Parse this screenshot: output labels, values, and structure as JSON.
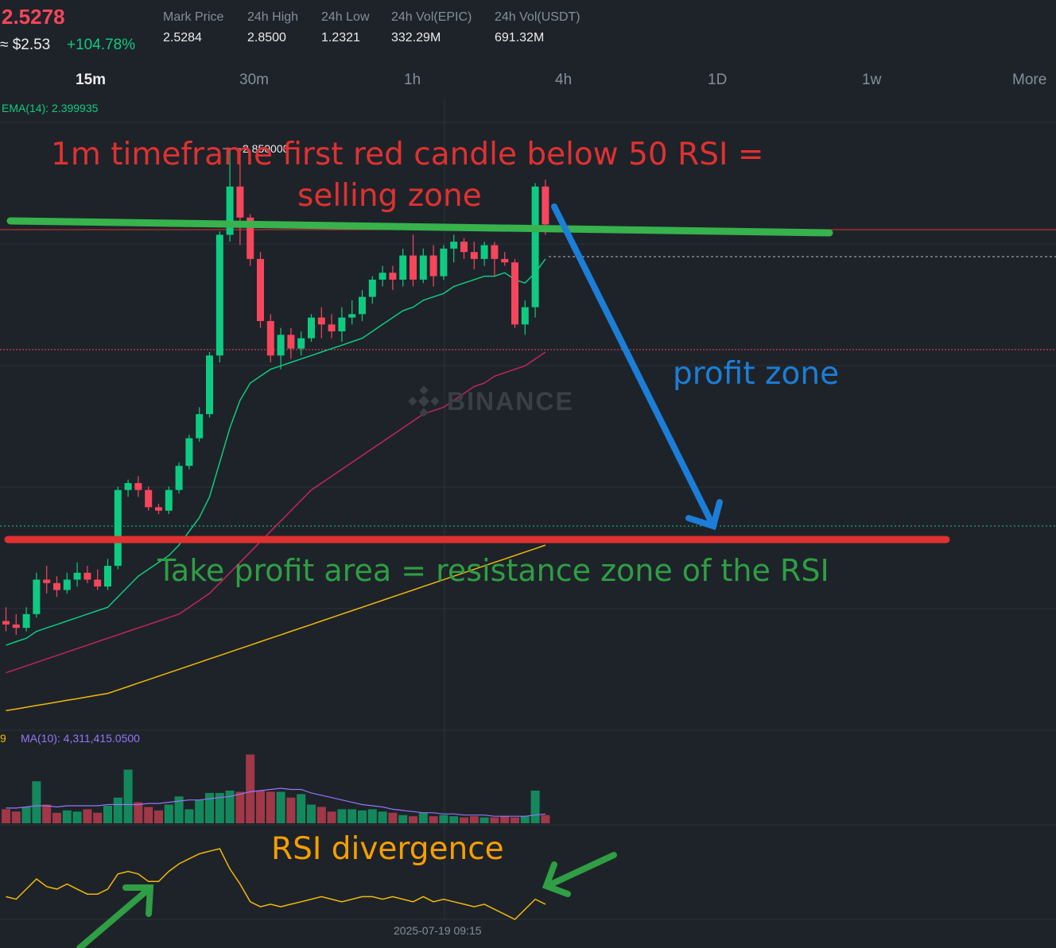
{
  "header": {
    "last_price": "2.5278",
    "usd_price": "≈ $2.53",
    "change_pct": "+104.78%",
    "stats": [
      {
        "label": "Mark Price",
        "value": "2.5284"
      },
      {
        "label": "24h High",
        "value": "2.8500"
      },
      {
        "label": "24h Low",
        "value": "1.2321"
      },
      {
        "label": "24h Vol(EPIC)",
        "value": "332.29M"
      },
      {
        "label": "24h Vol(USDT)",
        "value": "691.32M"
      }
    ]
  },
  "timeframes": [
    {
      "label": "15m",
      "active": true
    },
    {
      "label": "30m",
      "active": false
    },
    {
      "label": "1h",
      "active": false
    },
    {
      "label": "4h",
      "active": false
    },
    {
      "label": "1D",
      "active": false
    },
    {
      "label": "1w",
      "active": false
    },
    {
      "label": "More",
      "active": false
    }
  ],
  "chart": {
    "ema_label": "EMA(14): 2.399935",
    "high_marker": "2.850000",
    "watermark": "BINANCE",
    "volume_prefix": "9",
    "volume_ma_label": "MA(10): 4,311,415.0500",
    "time_label": "2025-07-19 09:15"
  },
  "annotations": {
    "selling_zone_line1": "1m timeframe first red candle below 50 RSI  =",
    "selling_zone_line2": "selling zone",
    "profit_zone": "profit zone",
    "take_profit": "Take profit area = resistance zone of the RSI",
    "rsi_divergence": "RSI divergence"
  },
  "colors": {
    "background": "#1e2329",
    "up": "#0ecb81",
    "down": "#f6465d",
    "ema": "#0ecb81",
    "ma_mid": "#c2255c",
    "ma_slow": "#f0b90b",
    "rsi": "#f0b90b",
    "annotation_red": "#e03131",
    "annotation_green": "#2f9e44",
    "annotation_blue": "#1c7ed6",
    "annotation_yellow": "#f59f00"
  },
  "chart_data": {
    "type": "candlestick",
    "interval": "15m",
    "candles": [
      {
        "o": 1.48,
        "h": 1.52,
        "l": 1.45,
        "c": 1.47
      },
      {
        "o": 1.47,
        "h": 1.5,
        "l": 1.44,
        "c": 1.46
      },
      {
        "o": 1.46,
        "h": 1.52,
        "l": 1.45,
        "c": 1.5
      },
      {
        "o": 1.5,
        "h": 1.62,
        "l": 1.49,
        "c": 1.6
      },
      {
        "o": 1.6,
        "h": 1.64,
        "l": 1.56,
        "c": 1.59
      },
      {
        "o": 1.59,
        "h": 1.61,
        "l": 1.55,
        "c": 1.57
      },
      {
        "o": 1.57,
        "h": 1.62,
        "l": 1.56,
        "c": 1.6
      },
      {
        "o": 1.6,
        "h": 1.65,
        "l": 1.58,
        "c": 1.62
      },
      {
        "o": 1.62,
        "h": 1.64,
        "l": 1.59,
        "c": 1.6
      },
      {
        "o": 1.6,
        "h": 1.63,
        "l": 1.57,
        "c": 1.58
      },
      {
        "o": 1.58,
        "h": 1.66,
        "l": 1.57,
        "c": 1.64
      },
      {
        "o": 1.64,
        "h": 1.87,
        "l": 1.63,
        "c": 1.86
      },
      {
        "o": 1.86,
        "h": 1.89,
        "l": 1.84,
        "c": 1.88
      },
      {
        "o": 1.88,
        "h": 1.9,
        "l": 1.84,
        "c": 1.86
      },
      {
        "o": 1.86,
        "h": 1.87,
        "l": 1.8,
        "c": 1.81
      },
      {
        "o": 1.81,
        "h": 1.82,
        "l": 1.79,
        "c": 1.8
      },
      {
        "o": 1.8,
        "h": 1.87,
        "l": 1.79,
        "c": 1.86
      },
      {
        "o": 1.86,
        "h": 1.94,
        "l": 1.85,
        "c": 1.93
      },
      {
        "o": 1.93,
        "h": 2.02,
        "l": 1.92,
        "c": 2.01
      },
      {
        "o": 2.01,
        "h": 2.1,
        "l": 2.0,
        "c": 2.08
      },
      {
        "o": 2.08,
        "h": 2.26,
        "l": 2.07,
        "c": 2.25
      },
      {
        "o": 2.25,
        "h": 2.61,
        "l": 2.23,
        "c": 2.6
      },
      {
        "o": 2.6,
        "h": 2.85,
        "l": 2.58,
        "c": 2.74
      },
      {
        "o": 2.74,
        "h": 2.85,
        "l": 2.57,
        "c": 2.65
      },
      {
        "o": 2.65,
        "h": 2.66,
        "l": 2.51,
        "c": 2.53
      },
      {
        "o": 2.53,
        "h": 2.55,
        "l": 2.33,
        "c": 2.35
      },
      {
        "o": 2.35,
        "h": 2.37,
        "l": 2.23,
        "c": 2.25
      },
      {
        "o": 2.25,
        "h": 2.33,
        "l": 2.21,
        "c": 2.31
      },
      {
        "o": 2.31,
        "h": 2.33,
        "l": 2.24,
        "c": 2.27
      },
      {
        "o": 2.27,
        "h": 2.32,
        "l": 2.25,
        "c": 2.3
      },
      {
        "o": 2.3,
        "h": 2.37,
        "l": 2.29,
        "c": 2.36
      },
      {
        "o": 2.36,
        "h": 2.39,
        "l": 2.3,
        "c": 2.34
      },
      {
        "o": 2.34,
        "h": 2.37,
        "l": 2.3,
        "c": 2.32
      },
      {
        "o": 2.32,
        "h": 2.39,
        "l": 2.29,
        "c": 2.36
      },
      {
        "o": 2.36,
        "h": 2.41,
        "l": 2.34,
        "c": 2.37
      },
      {
        "o": 2.37,
        "h": 2.44,
        "l": 2.35,
        "c": 2.42
      },
      {
        "o": 2.42,
        "h": 2.48,
        "l": 2.4,
        "c": 2.47
      },
      {
        "o": 2.47,
        "h": 2.51,
        "l": 2.45,
        "c": 2.49
      },
      {
        "o": 2.49,
        "h": 2.51,
        "l": 2.44,
        "c": 2.47
      },
      {
        "o": 2.47,
        "h": 2.56,
        "l": 2.45,
        "c": 2.54
      },
      {
        "o": 2.54,
        "h": 2.6,
        "l": 2.45,
        "c": 2.47
      },
      {
        "o": 2.47,
        "h": 2.56,
        "l": 2.46,
        "c": 2.54
      },
      {
        "o": 2.54,
        "h": 2.57,
        "l": 2.45,
        "c": 2.48
      },
      {
        "o": 2.48,
        "h": 2.57,
        "l": 2.47,
        "c": 2.56
      },
      {
        "o": 2.56,
        "h": 2.6,
        "l": 2.52,
        "c": 2.58
      },
      {
        "o": 2.58,
        "h": 2.59,
        "l": 2.53,
        "c": 2.55
      },
      {
        "o": 2.55,
        "h": 2.58,
        "l": 2.5,
        "c": 2.53
      },
      {
        "o": 2.53,
        "h": 2.58,
        "l": 2.51,
        "c": 2.57
      },
      {
        "o": 2.57,
        "h": 2.58,
        "l": 2.48,
        "c": 2.53
      },
      {
        "o": 2.53,
        "h": 2.55,
        "l": 2.51,
        "c": 2.52
      },
      {
        "o": 2.52,
        "h": 2.53,
        "l": 2.33,
        "c": 2.34
      },
      {
        "o": 2.34,
        "h": 2.41,
        "l": 2.31,
        "c": 2.39
      },
      {
        "o": 2.39,
        "h": 2.75,
        "l": 2.36,
        "c": 2.74
      },
      {
        "o": 2.74,
        "h": 2.76,
        "l": 2.6,
        "c": 2.63
      }
    ],
    "volume": [
      1.2,
      1.0,
      1.4,
      3.6,
      1.6,
      0.9,
      1.1,
      1.0,
      1.2,
      0.9,
      1.5,
      2.2,
      4.6,
      1.8,
      1.4,
      1.1,
      1.6,
      2.3,
      1.2,
      2.0,
      2.6,
      2.6,
      2.8,
      2.7,
      5.9,
      2.8,
      2.7,
      2.7,
      2.2,
      2.5,
      1.6,
      1.4,
      1.0,
      1.2,
      1.2,
      1.1,
      1.2,
      1.0,
      0.9,
      0.7,
      0.6,
      0.9,
      0.6,
      0.7,
      0.6,
      0.5,
      0.6,
      0.5,
      0.5,
      0.6,
      0.5,
      0.6,
      2.8,
      0.7
    ],
    "volume_ma": [
      1.3,
      1.3,
      1.4,
      1.5,
      1.5,
      1.4,
      1.5,
      1.5,
      1.5,
      1.5,
      1.6,
      1.6,
      1.6,
      1.6,
      1.7,
      1.7,
      1.8,
      1.9,
      2.0,
      2.0,
      2.1,
      2.2,
      2.3,
      2.5,
      2.7,
      2.8,
      2.9,
      3.0,
      2.9,
      2.9,
      2.6,
      2.4,
      2.2,
      2.0,
      1.8,
      1.6,
      1.5,
      1.4,
      1.2,
      1.1,
      1.0,
      0.9,
      0.9,
      0.8,
      0.8,
      0.7,
      0.7,
      0.7,
      0.6,
      0.6,
      0.6,
      0.6,
      0.7,
      0.8
    ],
    "rsi": [
      57,
      56,
      60,
      64,
      61,
      60,
      62,
      60,
      58,
      58,
      60,
      66,
      67,
      66,
      63,
      63,
      67,
      70,
      72,
      74,
      75,
      76,
      68,
      62,
      55,
      53,
      54,
      53,
      54,
      55,
      56,
      57,
      56,
      55,
      56,
      57,
      57,
      56,
      57,
      56,
      55,
      57,
      55,
      56,
      55,
      54,
      53,
      54,
      52,
      50,
      48,
      52,
      56,
      54
    ],
    "ema14": [
      1.41,
      1.42,
      1.43,
      1.45,
      1.46,
      1.47,
      1.48,
      1.49,
      1.5,
      1.51,
      1.52,
      1.55,
      1.58,
      1.61,
      1.63,
      1.65,
      1.67,
      1.7,
      1.74,
      1.78,
      1.84,
      1.94,
      2.04,
      2.12,
      2.17,
      2.19,
      2.21,
      2.22,
      2.23,
      2.24,
      2.25,
      2.26,
      2.27,
      2.28,
      2.29,
      2.3,
      2.32,
      2.34,
      2.36,
      2.38,
      2.39,
      2.41,
      2.42,
      2.43,
      2.45,
      2.46,
      2.47,
      2.48,
      2.48,
      2.49,
      2.47,
      2.46,
      2.49,
      2.53
    ],
    "ma_mid": [
      1.33,
      1.34,
      1.35,
      1.36,
      1.37,
      1.38,
      1.39,
      1.4,
      1.41,
      1.42,
      1.43,
      1.44,
      1.45,
      1.46,
      1.47,
      1.48,
      1.49,
      1.5,
      1.52,
      1.54,
      1.56,
      1.59,
      1.62,
      1.65,
      1.68,
      1.71,
      1.74,
      1.77,
      1.8,
      1.83,
      1.86,
      1.88,
      1.9,
      1.92,
      1.94,
      1.96,
      1.98,
      2.0,
      2.02,
      2.04,
      2.06,
      2.08,
      2.09,
      2.1,
      2.12,
      2.14,
      2.16,
      2.17,
      2.19,
      2.2,
      2.21,
      2.22,
      2.24,
      2.26
    ],
    "ma_slow": [
      1.22,
      1.225,
      1.23,
      1.235,
      1.24,
      1.245,
      1.25,
      1.255,
      1.26,
      1.265,
      1.27,
      1.28,
      1.29,
      1.3,
      1.31,
      1.32,
      1.33,
      1.34,
      1.35,
      1.36,
      1.37,
      1.38,
      1.39,
      1.4,
      1.41,
      1.42,
      1.43,
      1.44,
      1.45,
      1.46,
      1.47,
      1.48,
      1.49,
      1.5,
      1.51,
      1.52,
      1.53,
      1.54,
      1.55,
      1.56,
      1.57,
      1.58,
      1.59,
      1.6,
      1.61,
      1.62,
      1.63,
      1.64,
      1.65,
      1.66,
      1.67,
      1.68,
      1.69,
      1.7
    ]
  }
}
